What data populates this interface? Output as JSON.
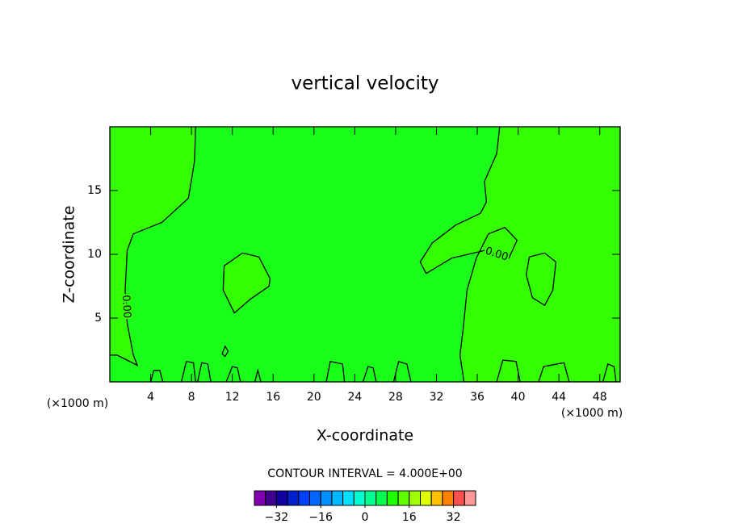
{
  "chart_data": {
    "type": "contour",
    "title": "vertical velocity",
    "x_label": "X-coordinate",
    "y_label": "Z-coordinate",
    "x_unit": "(×1000 m)",
    "y_unit": "(×1000 m)",
    "xlim": [
      0,
      50
    ],
    "xticks": [
      4,
      8,
      12,
      16,
      20,
      24,
      28,
      32,
      36,
      40,
      44,
      48
    ],
    "ylim": [
      0,
      20
    ],
    "yticks": [
      5,
      10,
      15
    ],
    "color": "#1aff1a",
    "contours": [
      {
        "level": 0,
        "label": "0.00",
        "fill": "#33ff00",
        "x": [
          8.4,
          8.3,
          7.7,
          5.1,
          2.3,
          1.7,
          1.5,
          1.7,
          2.3,
          2.7,
          0.7,
          0,
          0
        ],
        "y": [
          20,
          17.3,
          14.4,
          12.5,
          11.6,
          10.3,
          7.2,
          4.6,
          2.1,
          1.3,
          2.1,
          2.1,
          20
        ]
      },
      {
        "level": 0,
        "label": "0.00",
        "fill": "#33ff00",
        "x": [
          38.2,
          37.9,
          36.7,
          36.9,
          36.3,
          33.9,
          31.6,
          30.4,
          31,
          33.5,
          36.7,
          39.1,
          39.9,
          38.7,
          37.1,
          35.9,
          35,
          34.6,
          34.3,
          34.7,
          50,
          50
        ],
        "y": [
          20,
          17.9,
          15.7,
          14.1,
          13.2,
          12.3,
          10.9,
          9.4,
          8.5,
          9.7,
          10.3,
          9.7,
          11.1,
          12.1,
          11.6,
          9.7,
          7.2,
          4,
          2.1,
          0,
          0,
          20
        ]
      },
      {
        "level": 0,
        "fill": "#33ff00",
        "x": [
          12.2,
          11.1,
          11.2,
          13,
          14.6,
          15.7,
          15.6,
          13.8,
          12.2
        ],
        "y": [
          5.4,
          7.2,
          9.1,
          10.1,
          9.8,
          8.1,
          7.5,
          6.5,
          5.4
        ]
      },
      {
        "level": 0,
        "fill": "#33ff00",
        "x": [
          41.1,
          42.6,
          43.7,
          43.4,
          42.6,
          41.4,
          40.8,
          41.1
        ],
        "y": [
          9.8,
          10.1,
          9.4,
          7.2,
          6,
          6.6,
          8.4,
          9.8
        ]
      },
      {
        "level": 0,
        "x": [
          4.0,
          4.3,
          4.9,
          5.2
        ],
        "y": [
          0,
          0.9,
          0.9,
          0
        ]
      },
      {
        "level": 0,
        "x": [
          7.0,
          7.5,
          8.2,
          8.4
        ],
        "y": [
          0,
          1.6,
          1.5,
          0
        ]
      },
      {
        "level": 0,
        "x": [
          8.6,
          9.0,
          9.6,
          9.9
        ],
        "y": [
          0,
          1.5,
          1.4,
          0
        ]
      },
      {
        "level": 0,
        "x": [
          11.4,
          12.0,
          12.5,
          12.8
        ],
        "y": [
          0,
          1.2,
          1.1,
          0
        ]
      },
      {
        "level": 0,
        "x": [
          14.2,
          14.5,
          14.8
        ],
        "y": [
          0,
          0.9,
          0
        ]
      },
      {
        "level": 0,
        "x": [
          21.2,
          21.6,
          22.8,
          23.0
        ],
        "y": [
          0,
          1.6,
          1.4,
          0
        ]
      },
      {
        "level": 0,
        "x": [
          24.8,
          25.3,
          25.8,
          26.1
        ],
        "y": [
          0,
          1.2,
          1.1,
          0
        ]
      },
      {
        "level": 0,
        "x": [
          27.8,
          28.3,
          29.1,
          29.5
        ],
        "y": [
          0,
          1.6,
          1.4,
          0
        ]
      },
      {
        "level": 0,
        "x": [
          37.9,
          38.5,
          39.8,
          40.2
        ],
        "y": [
          0,
          1.7,
          1.6,
          0
        ]
      },
      {
        "level": 0,
        "x": [
          42.0,
          42.5,
          44.5,
          45.0
        ],
        "y": [
          0,
          1.2,
          1.5,
          0
        ]
      },
      {
        "level": 0,
        "x": [
          48.3,
          48.8,
          49.4,
          49.6
        ],
        "y": [
          0,
          1.4,
          1.2,
          0
        ]
      },
      {
        "level": 0,
        "x": [
          11.0,
          11.3,
          11.6,
          11.3,
          11.0
        ],
        "y": [
          2.2,
          2.8,
          2.4,
          2.0,
          2.2
        ]
      }
    ],
    "note": "CONTOUR INTERVAL = 4.000E+00",
    "colorbar": {
      "levels": [
        -40,
        -36,
        -32,
        -28,
        -24,
        -20,
        -16,
        -12,
        -8,
        -4,
        0,
        4,
        8,
        12,
        16,
        20,
        24,
        28,
        32,
        36,
        40
      ],
      "colors": [
        "#8000b0",
        "#400090",
        "#1000a0",
        "#0020d0",
        "#0040ff",
        "#0066ff",
        "#0090ff",
        "#00b8ff",
        "#00e0ff",
        "#00ffd0",
        "#00ff90",
        "#00ff50",
        "#20ff00",
        "#60ff00",
        "#a0ff00",
        "#e0ff00",
        "#ffc000",
        "#ff8000",
        "#ff5050",
        "#ff9999"
      ],
      "ticks": [
        {
          "value": -32,
          "label": "−32"
        },
        {
          "value": -16,
          "label": "−16"
        },
        0,
        16,
        32
      ]
    }
  }
}
